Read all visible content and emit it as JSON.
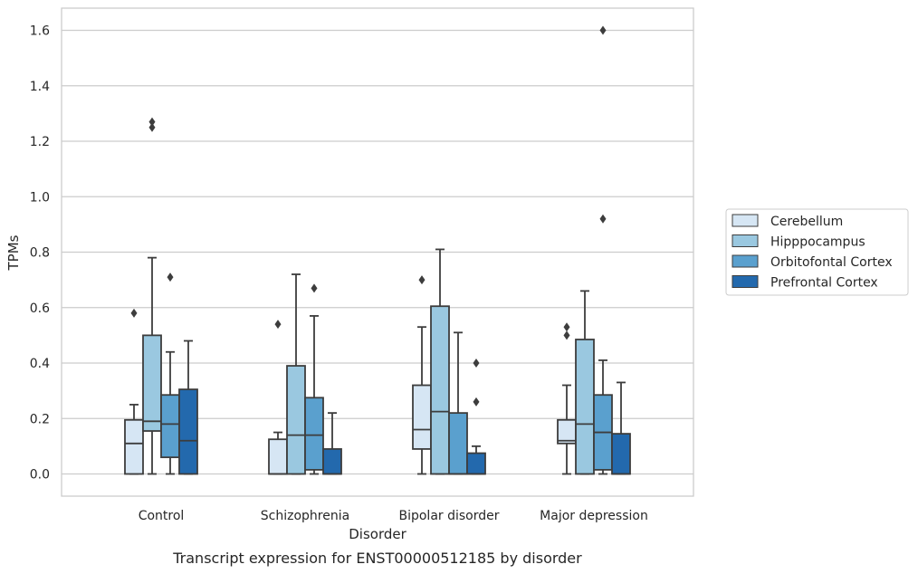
{
  "chart_data": {
    "type": "box",
    "caption": "Transcript expression for ENST00000512185 by disorder",
    "xlabel": "Disorder",
    "ylabel": "TPMs",
    "ylim": [
      -0.08,
      1.68
    ],
    "yticks": [
      "0.0",
      "0.2",
      "0.4",
      "0.6",
      "0.8",
      "1.0",
      "1.2",
      "1.4",
      "1.6"
    ],
    "categories": [
      "Control",
      "Schizophrenia",
      "Bipolar disorder",
      "Major depression"
    ],
    "grid": true,
    "legend_position": "right",
    "series": [
      {
        "name": "Cerebellum",
        "color": "#d6e6f4",
        "boxes": [
          {
            "min": 0.0,
            "q1": 0.0,
            "median": 0.11,
            "q3": 0.195,
            "max": 0.25,
            "outliers": [
              0.58
            ]
          },
          {
            "min": 0.0,
            "q1": 0.0,
            "median": 0.0,
            "q3": 0.125,
            "max": 0.15,
            "outliers": [
              0.54
            ]
          },
          {
            "min": 0.0,
            "q1": 0.09,
            "median": 0.16,
            "q3": 0.32,
            "max": 0.53,
            "outliers": [
              0.7
            ]
          },
          {
            "min": 0.0,
            "q1": 0.11,
            "median": 0.12,
            "q3": 0.195,
            "max": 0.32,
            "outliers": [
              0.5,
              0.53
            ]
          }
        ]
      },
      {
        "name": "Hipppocampus",
        "color": "#9ac8e0",
        "boxes": [
          {
            "min": 0.0,
            "q1": 0.155,
            "median": 0.19,
            "q3": 0.5,
            "max": 0.78,
            "outliers": [
              1.25,
              1.27
            ]
          },
          {
            "min": 0.0,
            "q1": 0.0,
            "median": 0.14,
            "q3": 0.39,
            "max": 0.72,
            "outliers": []
          },
          {
            "min": 0.0,
            "q1": 0.0,
            "median": 0.225,
            "q3": 0.605,
            "max": 0.81,
            "outliers": []
          },
          {
            "min": 0.0,
            "q1": 0.0,
            "median": 0.18,
            "q3": 0.485,
            "max": 0.66,
            "outliers": []
          }
        ]
      },
      {
        "name": "Orbitofontal Cortex",
        "color": "#5aa0ce",
        "boxes": [
          {
            "min": 0.0,
            "q1": 0.06,
            "median": 0.18,
            "q3": 0.285,
            "max": 0.44,
            "outliers": [
              0.71
            ]
          },
          {
            "min": 0.0,
            "q1": 0.015,
            "median": 0.14,
            "q3": 0.275,
            "max": 0.57,
            "outliers": [
              0.67
            ]
          },
          {
            "min": 0.0,
            "q1": 0.0,
            "median": 0.0,
            "q3": 0.22,
            "max": 0.51,
            "outliers": []
          },
          {
            "min": 0.0,
            "q1": 0.015,
            "median": 0.15,
            "q3": 0.285,
            "max": 0.41,
            "outliers": [
              0.92,
              1.6
            ]
          }
        ]
      },
      {
        "name": "Prefrontal Cortex",
        "color": "#2369ad",
        "boxes": [
          {
            "min": 0.0,
            "q1": 0.0,
            "median": 0.12,
            "q3": 0.305,
            "max": 0.48,
            "outliers": []
          },
          {
            "min": 0.0,
            "q1": 0.0,
            "median": 0.0,
            "q3": 0.09,
            "max": 0.22,
            "outliers": []
          },
          {
            "min": 0.0,
            "q1": 0.0,
            "median": 0.0,
            "q3": 0.075,
            "max": 0.1,
            "outliers": [
              0.26,
              0.4
            ]
          },
          {
            "min": 0.0,
            "q1": 0.0,
            "median": 0.0,
            "q3": 0.145,
            "max": 0.33,
            "outliers": []
          }
        ]
      }
    ]
  }
}
